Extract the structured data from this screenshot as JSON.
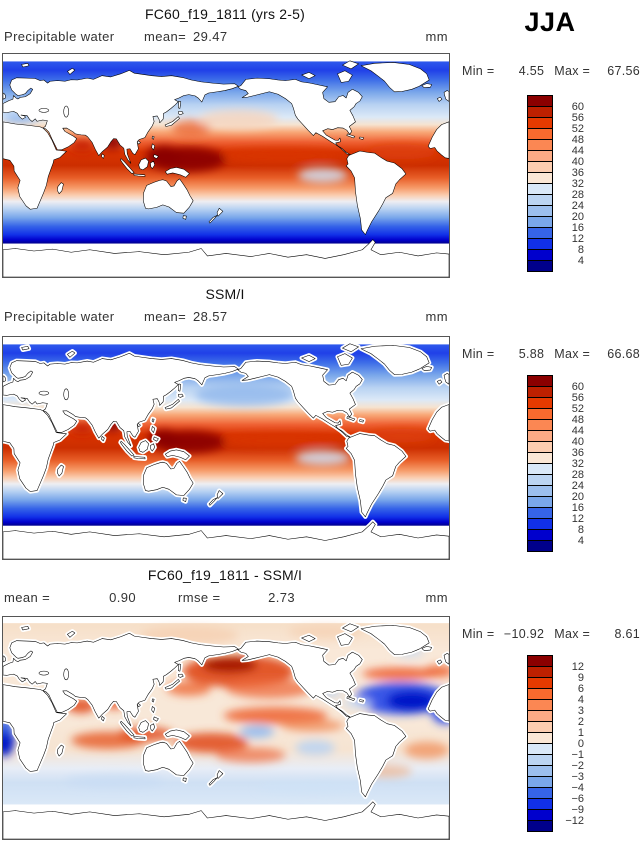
{
  "season_label": "JJA",
  "colorbar": {
    "palette_low_to_high": [
      "#00008B",
      "#0000CD",
      "#1130E8",
      "#3664E8",
      "#7AA7EA",
      "#9CBFEE",
      "#BBD4F2",
      "#D9E8F8",
      "#FBE7D5",
      "#FCCDB0",
      "#FCAB85",
      "#FB8753",
      "#F96A2E",
      "#E63A00",
      "#BD2000",
      "#8B0000"
    ],
    "cell_border_color": "#000000"
  },
  "panels": [
    {
      "title": "FC60_f19_1811 (yrs 2-5)",
      "variable_label": "Precipitable water",
      "stats": [
        {
          "label": "mean=",
          "value": "29.47"
        }
      ],
      "units": "mm",
      "min_label": "Min =",
      "min_value": "4.55",
      "max_label": "Max =",
      "max_value": "67.56",
      "colorbar_ticks": [
        "60",
        "56",
        "52",
        "48",
        "44",
        "40",
        "36",
        "32",
        "28",
        "24",
        "20",
        "16",
        "12",
        "8",
        "4"
      ]
    },
    {
      "title": "SSM/I",
      "variable_label": "Precipitable water",
      "stats": [
        {
          "label": "mean=",
          "value": "28.57"
        }
      ],
      "units": "mm",
      "min_label": "Min =",
      "min_value": "5.88",
      "max_label": "Max =",
      "max_value": "66.68",
      "colorbar_ticks": [
        "60",
        "56",
        "52",
        "48",
        "44",
        "40",
        "36",
        "32",
        "28",
        "24",
        "20",
        "16",
        "12",
        "8",
        "4"
      ]
    },
    {
      "title": "FC60_f19_1811 - SSM/I",
      "variable_label": "",
      "stats": [
        {
          "label": "mean =",
          "value": "0.90"
        },
        {
          "label": "rmse =",
          "value": "2.73"
        }
      ],
      "units": "mm",
      "min_label": "Min =",
      "min_value": "−10.92",
      "max_label": "Max =",
      "max_value": "8.61",
      "colorbar_ticks": [
        "12",
        "9",
        "6",
        "4",
        "3",
        "2",
        "1",
        "0",
        "−1",
        "−2",
        "−3",
        "−4",
        "−6",
        "−9",
        "−12"
      ]
    }
  ],
  "chart_data": [
    {
      "type": "heatmap",
      "subtype": "global filled-contour map",
      "title": "FC60_f19_1811 (yrs 2-5)",
      "variable": "Precipitable water",
      "season": "JJA",
      "units": "mm",
      "mean": 29.47,
      "min": 4.55,
      "max": 67.56,
      "contour_levels": [
        4,
        8,
        12,
        16,
        20,
        24,
        28,
        32,
        36,
        40,
        44,
        48,
        52,
        56,
        60
      ],
      "palette_low_to_high": [
        "#00008B",
        "#0000CD",
        "#1130E8",
        "#3664E8",
        "#7AA7EA",
        "#9CBFEE",
        "#BBD4F2",
        "#D9E8F8",
        "#FBE7D5",
        "#FCCDB0",
        "#FCAB85",
        "#FB8753",
        "#F96A2E",
        "#E63A00",
        "#BD2000",
        "#8B0000"
      ],
      "projection": "equirectangular, lon 0–360E, lat 90S–90N, Pacific-centered",
      "legend_position": "right",
      "pattern_notes": "maxima (>60 mm) over Bay of Bengal and west Pacific warm pool; tropics red 36-60 mm; values decrease poleward to <4 mm; land masked white"
    },
    {
      "type": "heatmap",
      "subtype": "global filled-contour map",
      "title": "SSM/I",
      "variable": "Precipitable water",
      "season": "JJA",
      "units": "mm",
      "mean": 28.57,
      "min": 5.88,
      "max": 66.68,
      "contour_levels": [
        4,
        8,
        12,
        16,
        20,
        24,
        28,
        32,
        36,
        40,
        44,
        48,
        52,
        56,
        60
      ],
      "palette_low_to_high": [
        "#00008B",
        "#0000CD",
        "#1130E8",
        "#3664E8",
        "#7AA7EA",
        "#9CBFEE",
        "#BBD4F2",
        "#D9E8F8",
        "#FBE7D5",
        "#FCCDB0",
        "#FCAB85",
        "#FB8753",
        "#F96A2E",
        "#E63A00",
        "#BD2000",
        "#8B0000"
      ],
      "projection": "equirectangular, lon 0–360E, lat 90S–90N, Pacific-centered",
      "legend_position": "right",
      "pattern_notes": "satellite ocean-only product; white buffer along coasts and sea ice; same tropical maximum structure as model"
    },
    {
      "type": "heatmap",
      "subtype": "global filled-contour difference map",
      "title": "FC60_f19_1811 - SSM/I",
      "variable": "Precipitable water difference (model minus obs)",
      "season": "JJA",
      "units": "mm",
      "mean": 0.9,
      "rmse": 2.73,
      "min": -10.92,
      "max": 8.61,
      "contour_levels": [
        -12,
        -9,
        -6,
        -4,
        -3,
        -2,
        -1,
        0,
        1,
        2,
        3,
        4,
        6,
        9,
        12
      ],
      "palette_low_to_high": [
        "#00008B",
        "#0000CD",
        "#1130E8",
        "#3664E8",
        "#7AA7EA",
        "#9CBFEE",
        "#BBD4F2",
        "#D9E8F8",
        "#FBE7D5",
        "#FCCDB0",
        "#FCAB85",
        "#FB8753",
        "#F96A2E",
        "#E63A00",
        "#BD2000",
        "#8B0000"
      ],
      "projection": "equirectangular, lon 0–360E, lat 90S–90N, Pacific-centered",
      "legend_position": "right",
      "pattern_notes": "wet bias (red, +3 to +9 mm) over North Pacific and tropical Indo-Pacific streaks; dry bias (blue, -4 to -11 mm) over subtropical North Atlantic and SE Atlantic edge; near-zero pale elsewhere"
    }
  ]
}
